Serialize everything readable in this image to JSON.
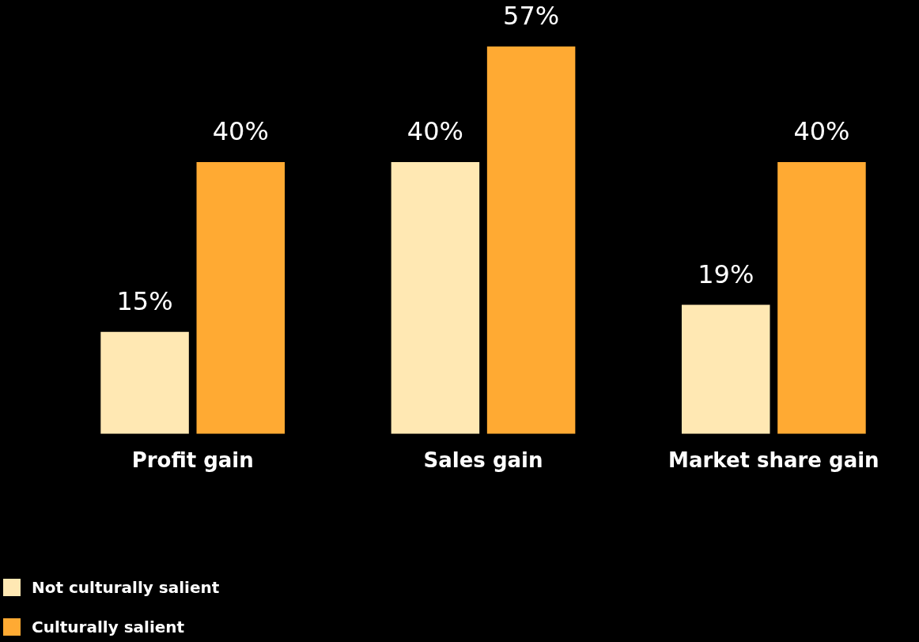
{
  "chart_data": {
    "type": "bar",
    "categories": [
      "Profit gain",
      "Sales gain",
      "Market share gain"
    ],
    "series": [
      {
        "name": "Not culturally salient",
        "color": "#ffe8b3",
        "values": [
          15,
          40,
          19
        ],
        "value_labels": [
          "15%",
          "40%",
          "19%"
        ]
      },
      {
        "name": "Culturally salient",
        "color": "#ffaa33",
        "values": [
          40,
          57,
          40
        ],
        "value_labels": [
          "40%",
          "57%",
          "40%"
        ]
      }
    ],
    "legend": "bottom left"
  }
}
